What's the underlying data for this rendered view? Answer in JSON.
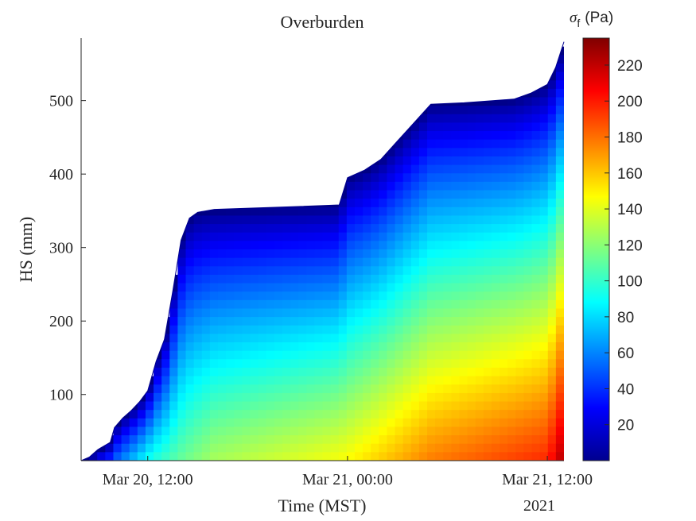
{
  "chart_data": {
    "type": "heatmap",
    "title": "Overburden",
    "xlabel": "Time (MST)",
    "ylabel": "HS (mm)",
    "x_secondary_label": "2021",
    "colorbar_label_symbol": "σ",
    "colorbar_label_sub": "f",
    "colorbar_label_unit": "(Pa)",
    "colormap": "jet",
    "clim": [
      0,
      235
    ],
    "colorbar_ticks": [
      20,
      40,
      60,
      80,
      100,
      120,
      140,
      160,
      180,
      200,
      220
    ],
    "xlim": [
      "2021-03-20 08:00",
      "2021-03-21 13:00"
    ],
    "ylim": [
      10,
      585
    ],
    "x_ticks": [
      {
        "value": "2021-03-20 12:00",
        "label": "Mar 20, 12:00"
      },
      {
        "value": "2021-03-21 00:00",
        "label": "Mar 21, 00:00"
      },
      {
        "value": "2021-03-21 12:00",
        "label": "Mar 21, 12:00"
      }
    ],
    "y_ticks": [
      100,
      200,
      300,
      400,
      500
    ],
    "snow_depth_profile": [
      {
        "time": "2021-03-20 08:00",
        "hs_mm": 10
      },
      {
        "time": "2021-03-20 08:30",
        "hs_mm": 15
      },
      {
        "time": "2021-03-20 09:00",
        "hs_mm": 25
      },
      {
        "time": "2021-03-20 09:45",
        "hs_mm": 35
      },
      {
        "time": "2021-03-20 10:00",
        "hs_mm": 55
      },
      {
        "time": "2021-03-20 10:30",
        "hs_mm": 68
      },
      {
        "time": "2021-03-20 11:00",
        "hs_mm": 78
      },
      {
        "time": "2021-03-20 11:30",
        "hs_mm": 90
      },
      {
        "time": "2021-03-20 12:00",
        "hs_mm": 105
      },
      {
        "time": "2021-03-20 12:30",
        "hs_mm": 145
      },
      {
        "time": "2021-03-20 13:00",
        "hs_mm": 175
      },
      {
        "time": "2021-03-20 13:30",
        "hs_mm": 240
      },
      {
        "time": "2021-03-20 14:00",
        "hs_mm": 310
      },
      {
        "time": "2021-03-20 14:30",
        "hs_mm": 340
      },
      {
        "time": "2021-03-20 15:00",
        "hs_mm": 348
      },
      {
        "time": "2021-03-20 16:00",
        "hs_mm": 352
      },
      {
        "time": "2021-03-20 20:00",
        "hs_mm": 355
      },
      {
        "time": "2021-03-20 23:30",
        "hs_mm": 358
      },
      {
        "time": "2021-03-21 00:00",
        "hs_mm": 395
      },
      {
        "time": "2021-03-21 01:00",
        "hs_mm": 405
      },
      {
        "time": "2021-03-21 02:00",
        "hs_mm": 420
      },
      {
        "time": "2021-03-21 03:00",
        "hs_mm": 445
      },
      {
        "time": "2021-03-21 04:00",
        "hs_mm": 470
      },
      {
        "time": "2021-03-21 05:00",
        "hs_mm": 495
      },
      {
        "time": "2021-03-21 07:00",
        "hs_mm": 497
      },
      {
        "time": "2021-03-21 10:00",
        "hs_mm": 502
      },
      {
        "time": "2021-03-21 11:00",
        "hs_mm": 510
      },
      {
        "time": "2021-03-21 12:00",
        "hs_mm": 522
      },
      {
        "time": "2021-03-21 12:30",
        "hs_mm": 545
      },
      {
        "time": "2021-03-21 13:00",
        "hs_mm": 580
      }
    ],
    "overburden_at_base_pa": [
      {
        "time": "2021-03-20 08:00",
        "value": 20
      },
      {
        "time": "2021-03-20 12:00",
        "value": 100
      },
      {
        "time": "2021-03-20 16:00",
        "value": 130
      },
      {
        "time": "2021-03-21 00:00",
        "value": 150
      },
      {
        "time": "2021-03-21 05:00",
        "value": 180
      },
      {
        "time": "2021-03-21 12:00",
        "value": 200
      },
      {
        "time": "2021-03-21 13:00",
        "value": 230
      }
    ]
  }
}
